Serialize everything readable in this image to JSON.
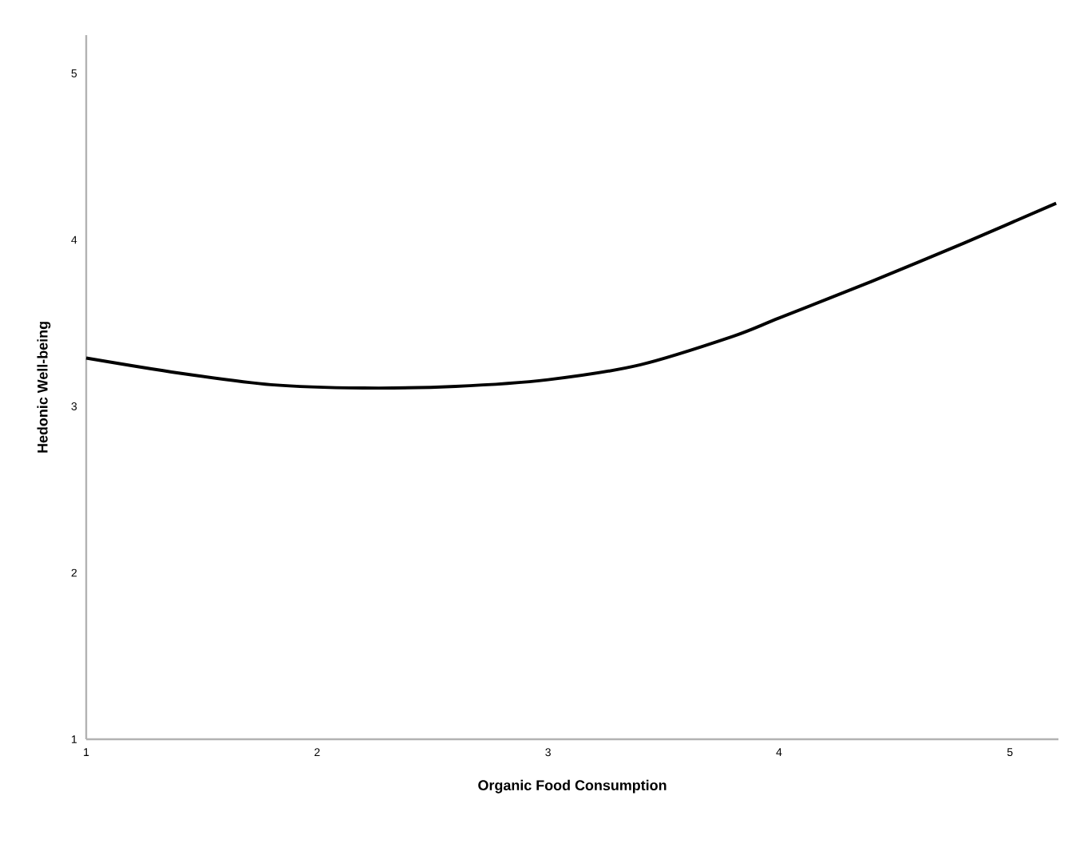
{
  "chart_data": {
    "type": "line",
    "xlabel": "Organic Food Consumption",
    "ylabel": "Hedonic Well-being",
    "x": [
      1,
      1.4,
      1.8,
      2.2,
      2.6,
      3,
      3.4,
      3.8,
      4,
      4.4,
      4.8,
      5.2
    ],
    "series": [
      {
        "color": "#000000",
        "values": [
          3.29,
          3.2,
          3.13,
          3.11,
          3.12,
          3.16,
          3.25,
          3.42,
          3.53,
          3.75,
          3.98,
          4.22
        ]
      }
    ],
    "xlim": [
      1,
      5.21
    ],
    "ylim": [
      1,
      5.23
    ],
    "xticks": [
      1,
      2,
      3,
      4,
      5
    ],
    "yticks": [
      1,
      2,
      3,
      4,
      5
    ],
    "grid": false,
    "marker": "none",
    "line_style": "solid"
  }
}
